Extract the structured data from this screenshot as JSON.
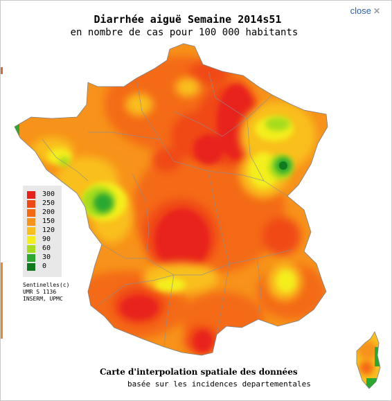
{
  "title": "Diarrhée aiguë Semaine 2014s51",
  "subtitle": "en nombre de cas pour 100 000 habitants",
  "close": {
    "label": "close",
    "icon": "close-icon"
  },
  "legend": {
    "items": [
      {
        "label": "300",
        "color": "#e8201a"
      },
      {
        "label": "250",
        "color": "#f04a14"
      },
      {
        "label": "200",
        "color": "#f46a12"
      },
      {
        "label": "150",
        "color": "#f7921a"
      },
      {
        "label": "120",
        "color": "#f9bf1e"
      },
      {
        "label": "90",
        "color": "#f4ee1a"
      },
      {
        "label": "60",
        "color": "#a6dc1e"
      },
      {
        "label": "30",
        "color": "#2aa830"
      },
      {
        "label": "0",
        "color": "#0f7a1e"
      }
    ]
  },
  "credits": [
    "Sentinelles(c)",
    "UMR S 1136",
    "INSERM, UPMC"
  ],
  "footer": {
    "line1": "Carte d'interpolation spatiale des données",
    "line2": "basée sur les incidences departementales"
  }
}
